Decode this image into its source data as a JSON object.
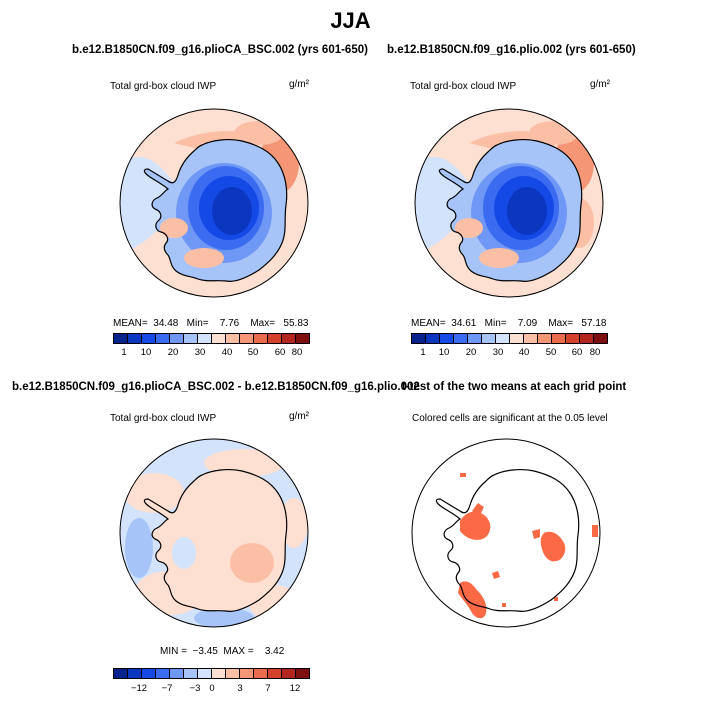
{
  "title": "JJA",
  "colors": {
    "positive": "#fb6a45",
    "negative_ramp": [
      "#08238c",
      "#0a36c0",
      "#1549e6",
      "#3a6bf0",
      "#6f97f5",
      "#a6c4f8",
      "#d2e3fb"
    ],
    "positive_ramp": [
      "#fde0d2",
      "#fbbfa5",
      "#f59777",
      "#ea6c4d",
      "#d5422c",
      "#b3261f",
      "#7d0f10"
    ],
    "coast": "#000000"
  },
  "panels": [
    {
      "title": "b.e12.B1850CN.f09_g16.plioCA_BSC.002 (yrs 601-650)",
      "subtitle": "Total grd-box cloud IWP",
      "units": "g/m²",
      "stats": {
        "mean_label": "MEAN=",
        "mean": "34.48",
        "min_label": "Min=",
        "min": "7.76",
        "max_label": "Max=",
        "max": "55.83"
      },
      "colorbar_labels": [
        "1",
        "10",
        "20",
        "30",
        "40",
        "50",
        "60",
        "80"
      ]
    },
    {
      "title": "b.e12.B1850CN.f09_g16.plio.002 (yrs 601-650)",
      "subtitle": "Total grd-box cloud IWP",
      "units": "g/m²",
      "stats": {
        "mean_label": "MEAN=",
        "mean": "34.61",
        "min_label": "Min=",
        "min": "7.09",
        "max_label": "Max=",
        "max": "57.18"
      },
      "colorbar_labels": [
        "1",
        "10",
        "20",
        "30",
        "40",
        "50",
        "60",
        "80"
      ]
    },
    {
      "title": "b.e12.B1850CN.f09_g16.plioCA_BSC.002 - b.e12.B1850CN.f09_g16.plio.002",
      "subtitle": "Total grd-box cloud IWP",
      "units": "g/m²",
      "stats": {
        "min_label": "MIN =",
        "min": "−3.45",
        "max_label": "MAX =",
        "max": "3.42"
      },
      "colorbar_labels": [
        "−12",
        "−7",
        "−3",
        "0",
        "3",
        "7",
        "12"
      ]
    },
    {
      "title": "t-test of the two means at each grid point",
      "subtitle": "Colored cells are significant at the 0.05 level"
    }
  ],
  "chart_data": [
    {
      "type": "heatmap",
      "title": "b.e12.B1850CN.f09_g16.plioCA_BSC.002 (yrs 601-650)",
      "variable": "Total grd-box cloud IWP",
      "units": "g/m²",
      "season": "JJA",
      "projection": "south polar stereographic",
      "mean": 34.48,
      "min": 7.76,
      "max": 55.83,
      "contour_levels": [
        1,
        10,
        20,
        30,
        40,
        50,
        60,
        80
      ]
    },
    {
      "type": "heatmap",
      "title": "b.e12.B1850CN.f09_g16.plio.002 (yrs 601-650)",
      "variable": "Total grd-box cloud IWP",
      "units": "g/m²",
      "season": "JJA",
      "projection": "south polar stereographic",
      "mean": 34.61,
      "min": 7.09,
      "max": 57.18,
      "contour_levels": [
        1,
        10,
        20,
        30,
        40,
        50,
        60,
        80
      ]
    },
    {
      "type": "heatmap",
      "title": "b.e12.B1850CN.f09_g16.plioCA_BSC.002 - b.e12.B1850CN.f09_g16.plio.002",
      "variable": "Total grd-box cloud IWP",
      "units": "g/m²",
      "season": "JJA",
      "projection": "south polar stereographic",
      "min": -3.45,
      "max": 3.42,
      "contour_levels": [
        -12,
        -7,
        -3,
        0,
        3,
        7,
        12
      ]
    },
    {
      "type": "heatmap",
      "title": "t-test of the two means at each grid point",
      "note": "Colored cells are significant at the 0.05 level",
      "significance_level": 0.05,
      "projection": "south polar stereographic"
    }
  ]
}
